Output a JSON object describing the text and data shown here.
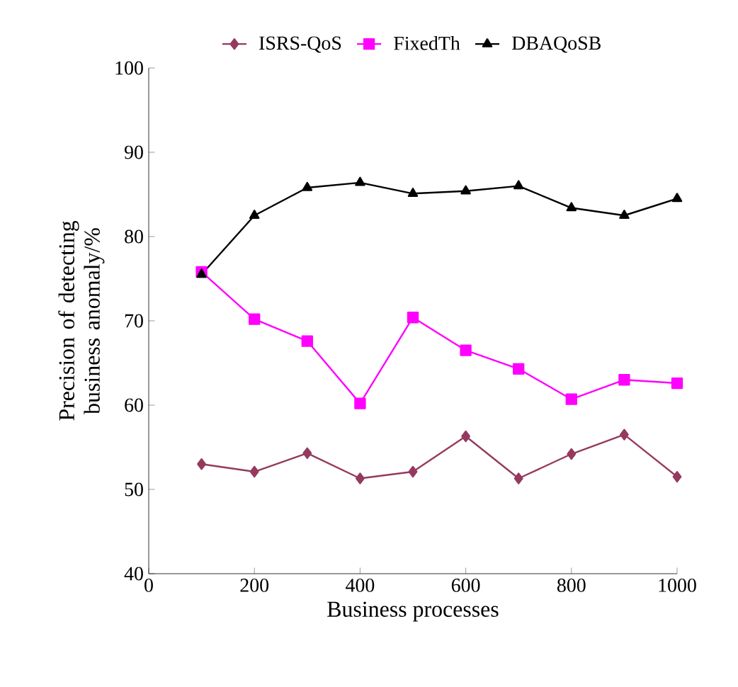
{
  "chart_data": {
    "type": "line",
    "xlabel": "Business processes",
    "ylabel": "Precision of detecting business anomaly/%",
    "x": [
      100,
      200,
      300,
      400,
      500,
      600,
      700,
      800,
      900,
      1000
    ],
    "series": [
      {
        "name": "ISRS-QoS",
        "color": "#953a5e",
        "marker": "diamond",
        "values": [
          53,
          52.1,
          54.3,
          51.3,
          52.1,
          56.3,
          51.3,
          54.2,
          56.5,
          51.5
        ]
      },
      {
        "name": "FixedTh",
        "color": "#ff00ff",
        "marker": "square",
        "values": [
          75.8,
          70.2,
          67.6,
          60.2,
          70.4,
          66.5,
          64.3,
          60.7,
          63,
          62.6
        ]
      },
      {
        "name": "DBAQoSB",
        "color": "#000000",
        "marker": "triangle",
        "values": [
          75.5,
          82.5,
          85.8,
          86.4,
          85.1,
          85.4,
          86,
          83.4,
          82.5,
          84.5
        ]
      }
    ],
    "xlim": [
      0,
      1000
    ],
    "xticks": [
      0,
      200,
      400,
      600,
      800,
      1000
    ],
    "ylim": [
      40,
      100
    ],
    "yticks": [
      40,
      50,
      60,
      70,
      80,
      90,
      100
    ],
    "grid": false,
    "legend": "top",
    "line_style": "solid"
  }
}
